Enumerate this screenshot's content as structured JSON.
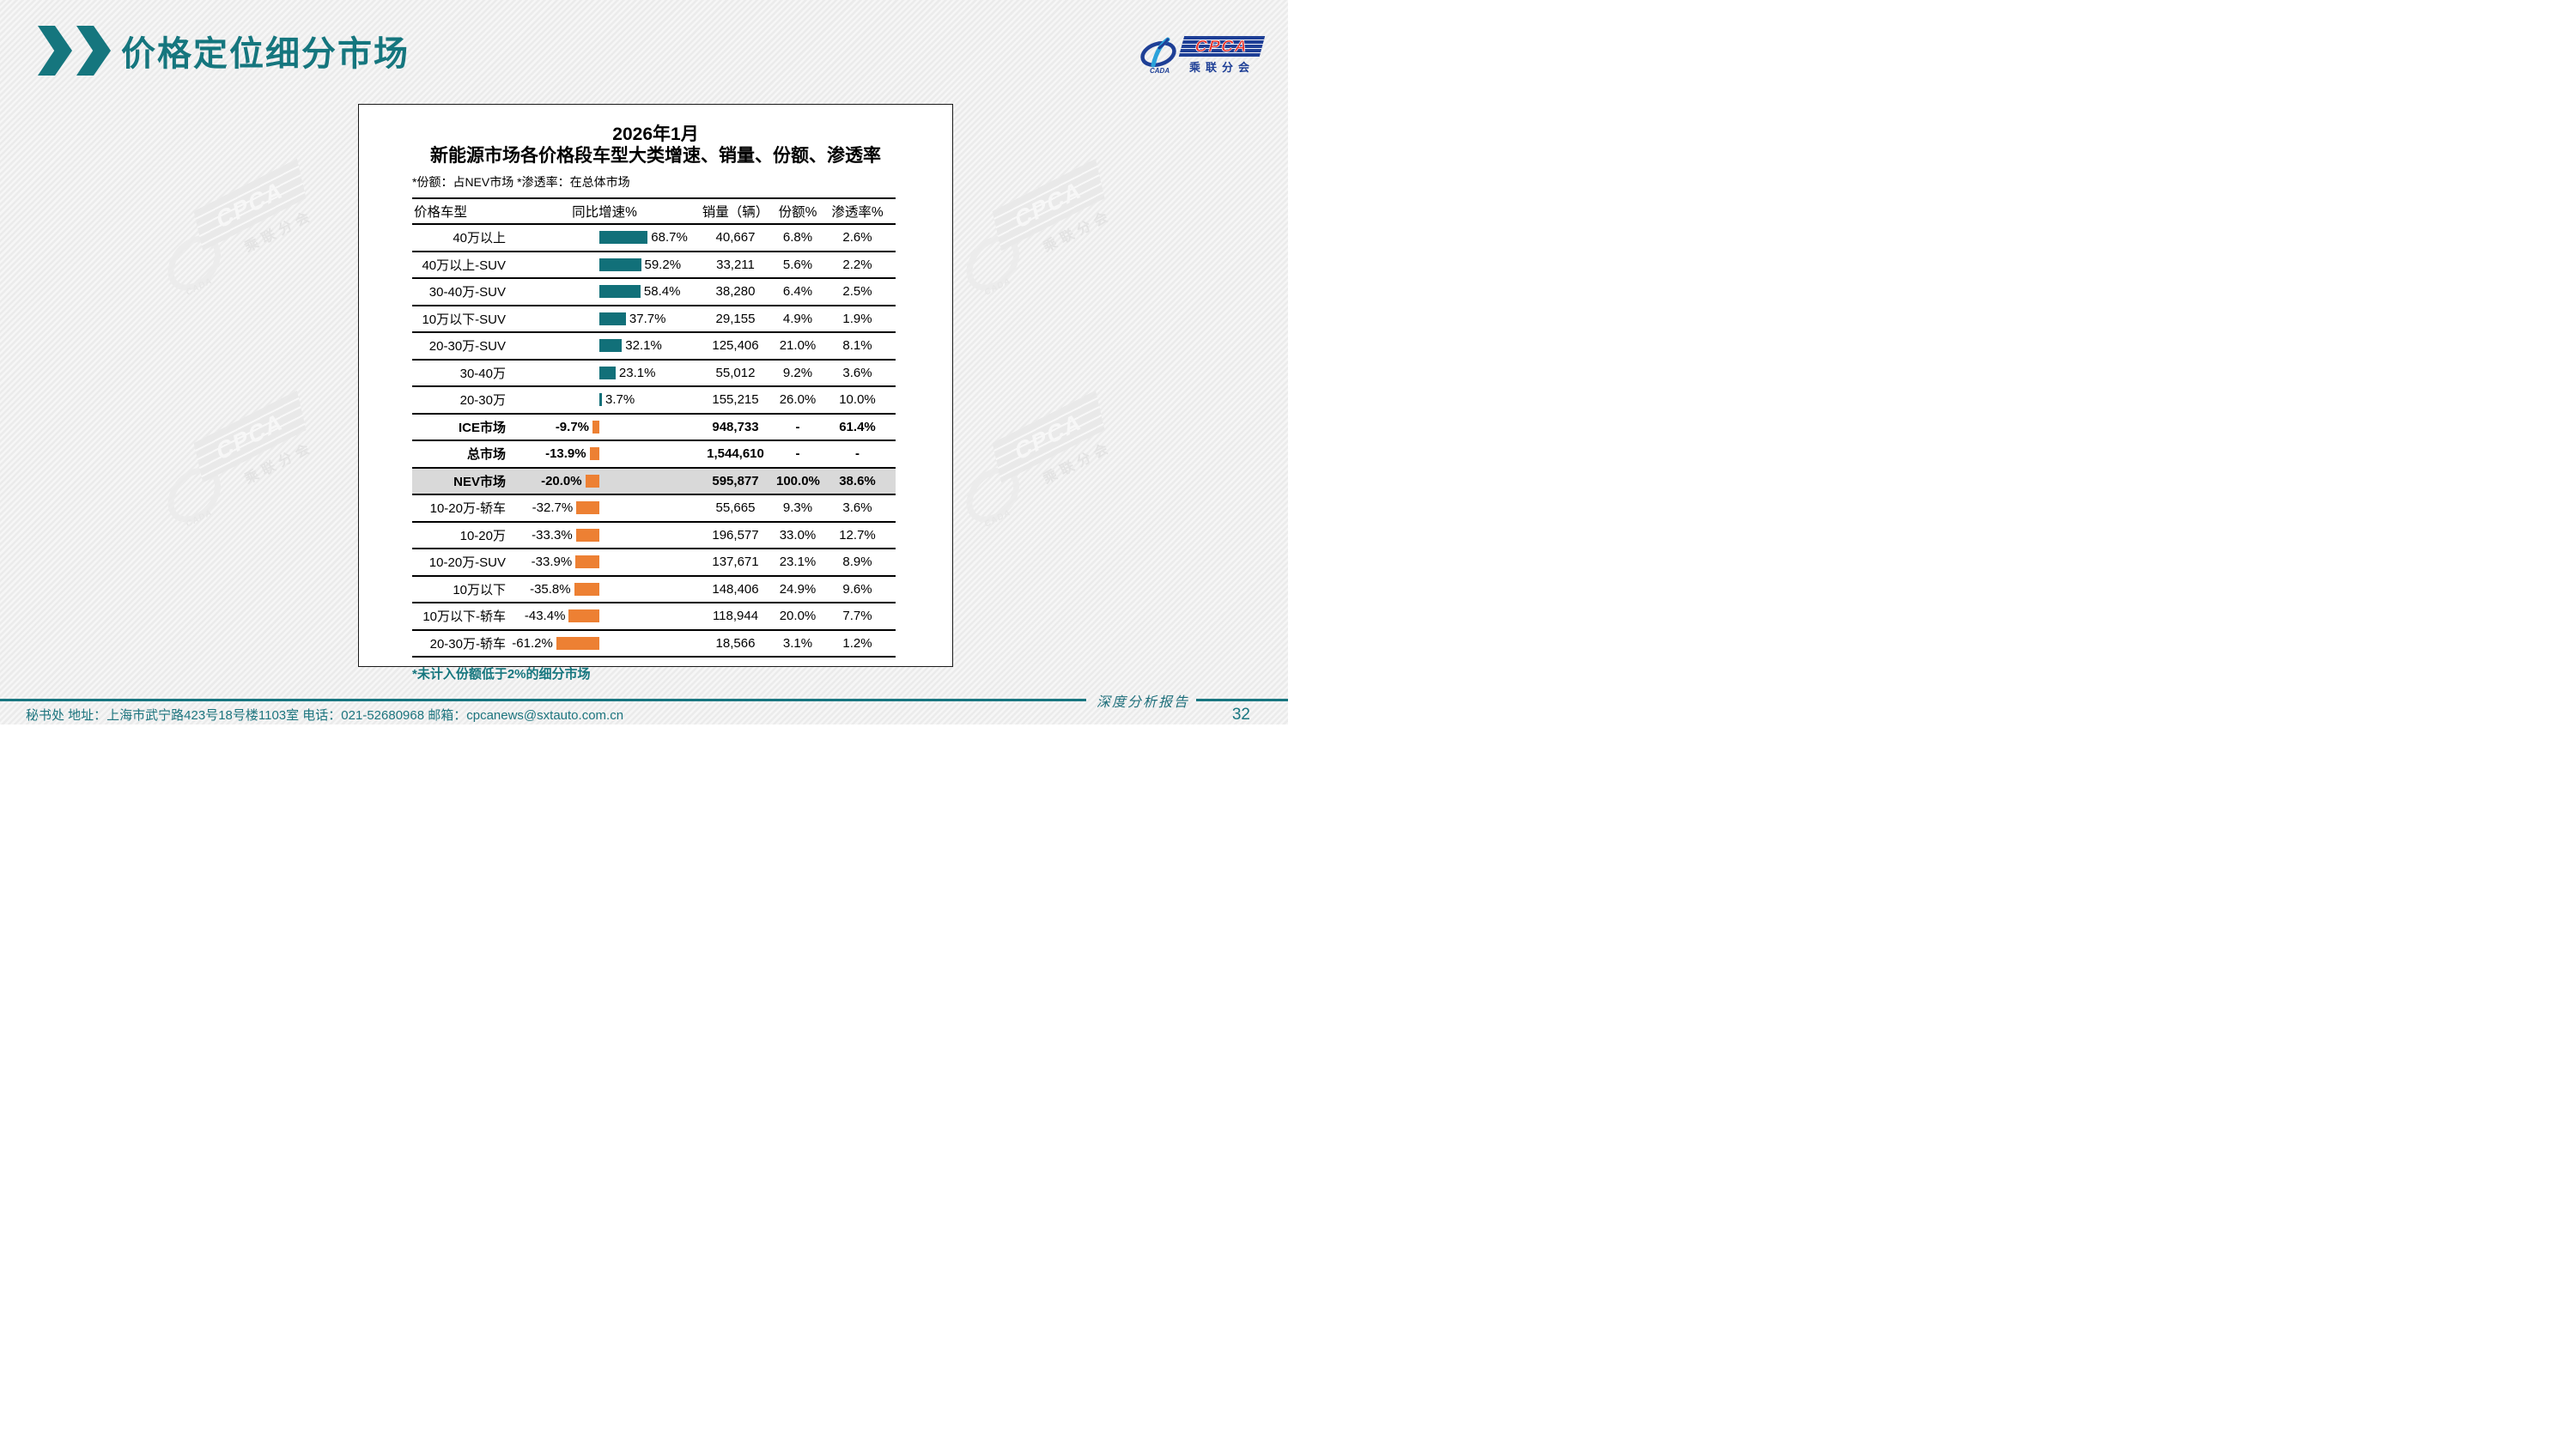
{
  "slide": {
    "title": "价格定位细分市场",
    "page_number": "32",
    "footer": {
      "left": "秘书处   地址：上海市武宁路423号18号楼1103室  电话：021-52680968   邮箱：cpcanews@sxtauto.com.cn",
      "report_label": "深度分析报告"
    },
    "logo": {
      "cpca": "CPCA",
      "cada": "CADA",
      "subtitle": "乘联分会"
    },
    "watermark": {
      "cpca": "CPCA",
      "cada": "CADA",
      "subtitle": "乘联分会"
    },
    "colors": {
      "accent_teal": "#15767e",
      "logo_blue": "#1e3f96",
      "logo_red": "#e8332a"
    }
  },
  "chart_data": {
    "type": "bar",
    "title_line1": "2026年1月",
    "title_line2": "新能源市场各价格段车型大类增速、销量、份额、渗透率",
    "note": "*份额：占NEV市场  *渗透率：在总体市场",
    "footnote": "*未计入份额低于2%的细分市场",
    "columns": [
      "价格车型",
      "同比增速%",
      "销量（辆）",
      "份额%",
      "渗透率%"
    ],
    "xlim": [
      -70,
      80
    ],
    "legend": "none",
    "bar_colors": {
      "positive": "#117079",
      "negative": "#ed8033"
    },
    "highlight_color": "#d9d9d9",
    "rows": [
      {
        "label": "40万以上",
        "growth": 68.7,
        "growth_label": "68.7%",
        "sales": "40,667",
        "share": "6.8%",
        "penetration": "2.6%"
      },
      {
        "label": "40万以上-SUV",
        "growth": 59.2,
        "growth_label": "59.2%",
        "sales": "33,211",
        "share": "5.6%",
        "penetration": "2.2%"
      },
      {
        "label": "30-40万-SUV",
        "growth": 58.4,
        "growth_label": "58.4%",
        "sales": "38,280",
        "share": "6.4%",
        "penetration": "2.5%"
      },
      {
        "label": "10万以下-SUV",
        "growth": 37.7,
        "growth_label": "37.7%",
        "sales": "29,155",
        "share": "4.9%",
        "penetration": "1.9%"
      },
      {
        "label": "20-30万-SUV",
        "growth": 32.1,
        "growth_label": "32.1%",
        "sales": "125,406",
        "share": "21.0%",
        "penetration": "8.1%"
      },
      {
        "label": "30-40万",
        "growth": 23.1,
        "growth_label": "23.1%",
        "sales": "55,012",
        "share": "9.2%",
        "penetration": "3.6%"
      },
      {
        "label": "20-30万",
        "growth": 3.7,
        "growth_label": "3.7%",
        "sales": "155,215",
        "share": "26.0%",
        "penetration": "10.0%"
      },
      {
        "label": "ICE市场",
        "growth": -9.7,
        "growth_label": "-9.7%",
        "sales": "948,733",
        "share": "-",
        "penetration": "61.4%",
        "bold": true
      },
      {
        "label": "总市场",
        "growth": -13.9,
        "growth_label": "-13.9%",
        "sales": "1,544,610",
        "share": "-",
        "penetration": "-",
        "bold": true
      },
      {
        "label": "NEV市场",
        "growth": -20.0,
        "growth_label": "-20.0%",
        "sales": "595,877",
        "share": "100.0%",
        "penetration": "38.6%",
        "bold": true,
        "highlight": true
      },
      {
        "label": "10-20万-轿车",
        "growth": -32.7,
        "growth_label": "-32.7%",
        "sales": "55,665",
        "share": "9.3%",
        "penetration": "3.6%"
      },
      {
        "label": "10-20万",
        "growth": -33.3,
        "growth_label": "-33.3%",
        "sales": "196,577",
        "share": "33.0%",
        "penetration": "12.7%"
      },
      {
        "label": "10-20万-SUV",
        "growth": -33.9,
        "growth_label": "-33.9%",
        "sales": "137,671",
        "share": "23.1%",
        "penetration": "8.9%"
      },
      {
        "label": "10万以下",
        "growth": -35.8,
        "growth_label": "-35.8%",
        "sales": "148,406",
        "share": "24.9%",
        "penetration": "9.6%"
      },
      {
        "label": "10万以下-轿车",
        "growth": -43.4,
        "growth_label": "-43.4%",
        "sales": "118,944",
        "share": "20.0%",
        "penetration": "7.7%"
      },
      {
        "label": "20-30万-轿车",
        "growth": -61.2,
        "growth_label": "-61.2%",
        "sales": "18,566",
        "share": "3.1%",
        "penetration": "1.2%"
      }
    ]
  }
}
